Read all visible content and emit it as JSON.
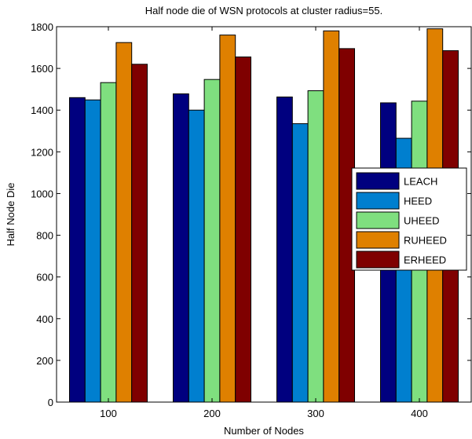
{
  "chart_data": {
    "type": "bar",
    "title": "Half node die of WSN protocols at cluster radius=55.",
    "xlabel": "Number of Nodes",
    "ylabel": "Half Node Die",
    "categories": [
      "100",
      "200",
      "300",
      "400"
    ],
    "ylim": [
      0,
      1800
    ],
    "yticks": [
      "0",
      "200",
      "400",
      "600",
      "800",
      "1000",
      "1200",
      "1400",
      "1600",
      "1800"
    ],
    "grid": false,
    "legend_position": "right",
    "series": [
      {
        "name": "LEACH",
        "color": "#00007f",
        "values": [
          1460,
          1478,
          1463,
          1435
        ]
      },
      {
        "name": "HEED",
        "color": "#007fcf",
        "values": [
          1449,
          1400,
          1335,
          1265
        ]
      },
      {
        "name": "UHEED",
        "color": "#7fdf7f",
        "values": [
          1532,
          1547,
          1493,
          1443
        ]
      },
      {
        "name": "RUHEED",
        "color": "#df8000",
        "values": [
          1724,
          1760,
          1780,
          1790
        ]
      },
      {
        "name": "ERHEED",
        "color": "#7f0000",
        "values": [
          1620,
          1655,
          1695,
          1685
        ]
      }
    ]
  }
}
